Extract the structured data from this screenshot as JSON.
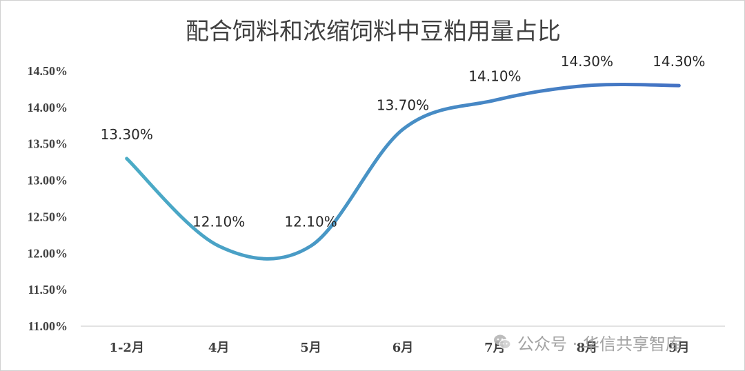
{
  "chart_data": {
    "type": "line",
    "title": "配合饲料和浓缩饲料中豆粕用量占比",
    "categories": [
      "1-2月",
      "4月",
      "5月",
      "6月",
      "7月",
      "8月",
      "9月"
    ],
    "series": [
      {
        "values": [
          13.3,
          12.1,
          12.1,
          13.7,
          14.1,
          14.3,
          14.3
        ],
        "labels": [
          "13.30%",
          "12.10%",
          "12.10%",
          "13.70%",
          "14.10%",
          "14.30%",
          "14.30%"
        ]
      }
    ],
    "yticks": [
      {
        "value": 11.0,
        "label": "11.00%"
      },
      {
        "value": 11.5,
        "label": "11.50%"
      },
      {
        "value": 12.0,
        "label": "12.00%"
      },
      {
        "value": 12.5,
        "label": "12.50%"
      },
      {
        "value": 13.0,
        "label": "13.00%"
      },
      {
        "value": 13.5,
        "label": "13.50%"
      },
      {
        "value": 14.0,
        "label": "14.00%"
      },
      {
        "value": 14.5,
        "label": "14.50%"
      }
    ],
    "ylim": [
      11.0,
      14.5
    ],
    "smooth": true,
    "grid": false,
    "line_color_start": "#4bacc6",
    "line_color_end": "#4472c4"
  },
  "watermark": {
    "text": "公众号 · 华信共享智库",
    "icon": "wechat-icon"
  }
}
